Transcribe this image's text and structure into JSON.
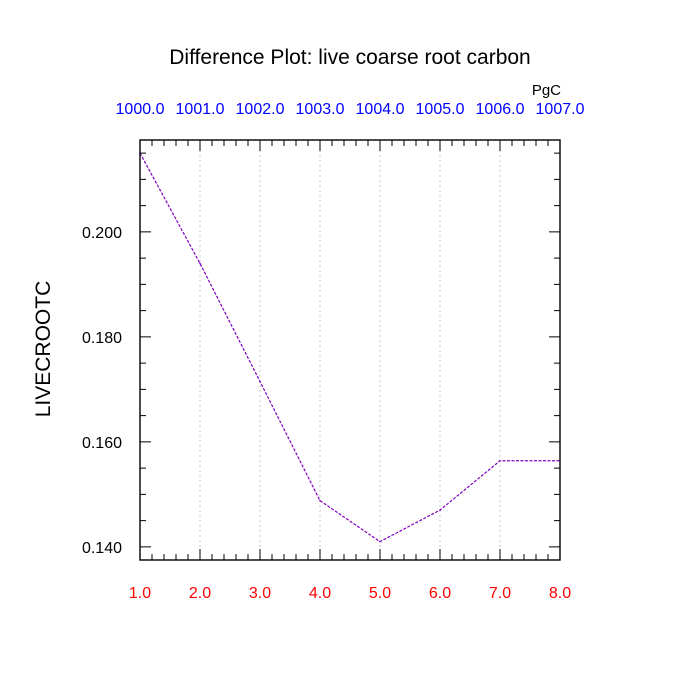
{
  "chart_data": {
    "type": "line",
    "title": "Difference Plot: live coarse root carbon",
    "units_label": "PgC",
    "ylabel": "LIVECROOTC",
    "xlabel": "",
    "x": [
      1.0,
      2.0,
      3.0,
      4.0,
      5.0,
      6.0,
      7.0,
      8.0
    ],
    "series": [
      {
        "values": [
          0.215,
          0.194,
          0.1715,
          0.1488,
          0.141,
          0.147,
          0.1564,
          0.1564
        ],
        "color": "#8000c0"
      }
    ],
    "xlim": [
      1.0,
      8.0
    ],
    "ylim": [
      0.1375,
      0.2175
    ],
    "x_ticks": [
      1.0,
      2.0,
      3.0,
      4.0,
      5.0,
      6.0,
      7.0,
      8.0
    ],
    "x_tick_labels": [
      "1.0",
      "2.0",
      "3.0",
      "4.0",
      "5.0",
      "6.0",
      "7.0",
      "8.0"
    ],
    "top_tick_labels": [
      "1000.0",
      "1001.0",
      "1002.0",
      "1003.0",
      "1004.0",
      "1005.0",
      "1006.0",
      "1007.0"
    ],
    "y_ticks": [
      0.14,
      0.16,
      0.18,
      0.2
    ],
    "y_tick_labels": [
      "0.140",
      "0.160",
      "0.180",
      "0.200"
    ],
    "grid": "vertical dotted",
    "colors": {
      "bottom_tick_labels": "#ff0000",
      "top_tick_labels": "#0000ff",
      "axis": "#000000",
      "grid": "#c8c8c8"
    }
  }
}
